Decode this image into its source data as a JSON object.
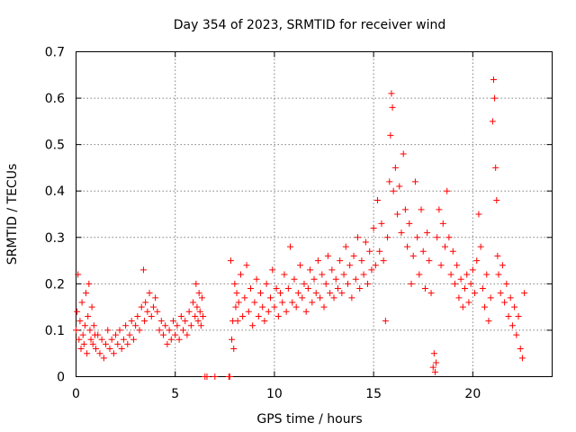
{
  "chart_data": {
    "type": "scatter",
    "title": "Day 354 of 2023, SRMTID for receiver wind",
    "xlabel": "GPS time / hours",
    "ylabel": "SRMTID / TECUs",
    "xlim": [
      0,
      24
    ],
    "ylim": [
      0,
      0.7
    ],
    "xticks": [
      0,
      5,
      10,
      15,
      20
    ],
    "yticks": [
      0,
      0.1,
      0.2,
      0.3,
      0.4,
      0.5,
      0.6,
      0.7
    ],
    "xtick_labels": [
      "0",
      "5",
      "10",
      "15",
      "20"
    ],
    "ytick_labels": [
      "0",
      "0.1",
      "0.2",
      "0.3",
      "0.4",
      "0.5",
      "0.6",
      "0.7"
    ],
    "grid": true,
    "marker": "+",
    "series": [
      {
        "name": "SRMTID",
        "color": "#ff0000",
        "points": [
          [
            0.0,
            0.1
          ],
          [
            0.05,
            0.14
          ],
          [
            0.1,
            0.22
          ],
          [
            0.15,
            0.08
          ],
          [
            0.2,
            0.12
          ],
          [
            0.25,
            0.06
          ],
          [
            0.3,
            0.16
          ],
          [
            0.35,
            0.09
          ],
          [
            0.4,
            0.07
          ],
          [
            0.45,
            0.11
          ],
          [
            0.5,
            0.18
          ],
          [
            0.55,
            0.05
          ],
          [
            0.6,
            0.13
          ],
          [
            0.65,
            0.2
          ],
          [
            0.7,
            0.1
          ],
          [
            0.75,
            0.08
          ],
          [
            0.8,
            0.15
          ],
          [
            0.85,
            0.07
          ],
          [
            0.9,
            0.11
          ],
          [
            0.95,
            0.09
          ],
          [
            1.0,
            0.06
          ],
          [
            1.1,
            0.09
          ],
          [
            1.2,
            0.05
          ],
          [
            1.3,
            0.08
          ],
          [
            1.4,
            0.04
          ],
          [
            1.5,
            0.07
          ],
          [
            1.6,
            0.1
          ],
          [
            1.7,
            0.06
          ],
          [
            1.8,
            0.08
          ],
          [
            1.9,
            0.05
          ],
          [
            2.0,
            0.09
          ],
          [
            2.1,
            0.07
          ],
          [
            2.2,
            0.1
          ],
          [
            2.3,
            0.06
          ],
          [
            2.4,
            0.08
          ],
          [
            2.5,
            0.11
          ],
          [
            2.6,
            0.07
          ],
          [
            2.7,
            0.09
          ],
          [
            2.8,
            0.12
          ],
          [
            2.9,
            0.08
          ],
          [
            3.0,
            0.11
          ],
          [
            3.1,
            0.13
          ],
          [
            3.2,
            0.1
          ],
          [
            3.3,
            0.15
          ],
          [
            3.4,
            0.23
          ],
          [
            3.45,
            0.12
          ],
          [
            3.5,
            0.16
          ],
          [
            3.6,
            0.14
          ],
          [
            3.7,
            0.18
          ],
          [
            3.8,
            0.13
          ],
          [
            3.9,
            0.15
          ],
          [
            4.0,
            0.17
          ],
          [
            4.1,
            0.14
          ],
          [
            4.2,
            0.1
          ],
          [
            4.3,
            0.12
          ],
          [
            4.4,
            0.09
          ],
          [
            4.5,
            0.11
          ],
          [
            4.6,
            0.07
          ],
          [
            4.7,
            0.1
          ],
          [
            4.8,
            0.08
          ],
          [
            4.9,
            0.12
          ],
          [
            5.0,
            0.09
          ],
          [
            5.1,
            0.11
          ],
          [
            5.2,
            0.08
          ],
          [
            5.3,
            0.13
          ],
          [
            5.4,
            0.1
          ],
          [
            5.5,
            0.12
          ],
          [
            5.6,
            0.09
          ],
          [
            5.7,
            0.14
          ],
          [
            5.8,
            0.11
          ],
          [
            5.9,
            0.16
          ],
          [
            6.0,
            0.13
          ],
          [
            6.05,
            0.2
          ],
          [
            6.1,
            0.15
          ],
          [
            6.15,
            0.12
          ],
          [
            6.2,
            0.18
          ],
          [
            6.25,
            0.14
          ],
          [
            6.3,
            0.11
          ],
          [
            6.35,
            0.17
          ],
          [
            6.4,
            0.13
          ],
          [
            6.5,
            0.0
          ],
          [
            6.6,
            0.0
          ],
          [
            7.0,
            0.0
          ],
          [
            7.7,
            0.0
          ],
          [
            7.75,
            0.0
          ],
          [
            7.8,
            0.25
          ],
          [
            7.85,
            0.08
          ],
          [
            7.9,
            0.12
          ],
          [
            7.95,
            0.06
          ],
          [
            8.0,
            0.2
          ],
          [
            8.05,
            0.15
          ],
          [
            8.1,
            0.18
          ],
          [
            8.15,
            0.12
          ],
          [
            8.2,
            0.16
          ],
          [
            8.3,
            0.22
          ],
          [
            8.4,
            0.13
          ],
          [
            8.5,
            0.17
          ],
          [
            8.6,
            0.24
          ],
          [
            8.7,
            0.14
          ],
          [
            8.8,
            0.19
          ],
          [
            8.9,
            0.11
          ],
          [
            9.0,
            0.16
          ],
          [
            9.1,
            0.21
          ],
          [
            9.2,
            0.13
          ],
          [
            9.3,
            0.18
          ],
          [
            9.4,
            0.15
          ],
          [
            9.5,
            0.12
          ],
          [
            9.6,
            0.2
          ],
          [
            9.7,
            0.14
          ],
          [
            9.8,
            0.17
          ],
          [
            9.9,
            0.23
          ],
          [
            10.0,
            0.15
          ],
          [
            10.1,
            0.19
          ],
          [
            10.2,
            0.13
          ],
          [
            10.3,
            0.18
          ],
          [
            10.4,
            0.16
          ],
          [
            10.5,
            0.22
          ],
          [
            10.6,
            0.14
          ],
          [
            10.7,
            0.19
          ],
          [
            10.8,
            0.28
          ],
          [
            10.9,
            0.16
          ],
          [
            11.0,
            0.21
          ],
          [
            11.1,
            0.15
          ],
          [
            11.2,
            0.18
          ],
          [
            11.3,
            0.24
          ],
          [
            11.4,
            0.17
          ],
          [
            11.5,
            0.2
          ],
          [
            11.6,
            0.14
          ],
          [
            11.7,
            0.19
          ],
          [
            11.8,
            0.23
          ],
          [
            11.9,
            0.16
          ],
          [
            12.0,
            0.21
          ],
          [
            12.1,
            0.18
          ],
          [
            12.2,
            0.25
          ],
          [
            12.3,
            0.17
          ],
          [
            12.4,
            0.22
          ],
          [
            12.5,
            0.15
          ],
          [
            12.6,
            0.2
          ],
          [
            12.7,
            0.26
          ],
          [
            12.8,
            0.18
          ],
          [
            12.9,
            0.23
          ],
          [
            13.0,
            0.17
          ],
          [
            13.1,
            0.21
          ],
          [
            13.2,
            0.19
          ],
          [
            13.3,
            0.25
          ],
          [
            13.4,
            0.18
          ],
          [
            13.5,
            0.22
          ],
          [
            13.6,
            0.28
          ],
          [
            13.7,
            0.2
          ],
          [
            13.8,
            0.24
          ],
          [
            13.9,
            0.17
          ],
          [
            14.0,
            0.26
          ],
          [
            14.1,
            0.21
          ],
          [
            14.2,
            0.3
          ],
          [
            14.3,
            0.19
          ],
          [
            14.4,
            0.25
          ],
          [
            14.5,
            0.22
          ],
          [
            14.6,
            0.29
          ],
          [
            14.7,
            0.2
          ],
          [
            14.8,
            0.27
          ],
          [
            14.9,
            0.23
          ],
          [
            15.0,
            0.32
          ],
          [
            15.1,
            0.24
          ],
          [
            15.2,
            0.38
          ],
          [
            15.3,
            0.27
          ],
          [
            15.4,
            0.33
          ],
          [
            15.5,
            0.25
          ],
          [
            15.6,
            0.12
          ],
          [
            15.7,
            0.3
          ],
          [
            15.8,
            0.42
          ],
          [
            15.85,
            0.52
          ],
          [
            15.9,
            0.61
          ],
          [
            15.95,
            0.58
          ],
          [
            16.0,
            0.4
          ],
          [
            16.1,
            0.45
          ],
          [
            16.2,
            0.35
          ],
          [
            16.3,
            0.41
          ],
          [
            16.4,
            0.31
          ],
          [
            16.5,
            0.48
          ],
          [
            16.6,
            0.36
          ],
          [
            16.7,
            0.28
          ],
          [
            16.8,
            0.33
          ],
          [
            16.9,
            0.2
          ],
          [
            17.0,
            0.26
          ],
          [
            17.1,
            0.42
          ],
          [
            17.2,
            0.3
          ],
          [
            17.3,
            0.22
          ],
          [
            17.4,
            0.36
          ],
          [
            17.5,
            0.27
          ],
          [
            17.6,
            0.19
          ],
          [
            17.7,
            0.31
          ],
          [
            17.8,
            0.25
          ],
          [
            17.9,
            0.18
          ],
          [
            18.0,
            0.02
          ],
          [
            18.05,
            0.05
          ],
          [
            18.1,
            0.01
          ],
          [
            18.15,
            0.03
          ],
          [
            18.2,
            0.3
          ],
          [
            18.3,
            0.36
          ],
          [
            18.4,
            0.24
          ],
          [
            18.5,
            0.33
          ],
          [
            18.6,
            0.28
          ],
          [
            18.7,
            0.4
          ],
          [
            18.8,
            0.3
          ],
          [
            18.9,
            0.22
          ],
          [
            19.0,
            0.27
          ],
          [
            19.1,
            0.2
          ],
          [
            19.2,
            0.24
          ],
          [
            19.3,
            0.17
          ],
          [
            19.4,
            0.21
          ],
          [
            19.5,
            0.15
          ],
          [
            19.6,
            0.19
          ],
          [
            19.7,
            0.22
          ],
          [
            19.8,
            0.16
          ],
          [
            19.9,
            0.2
          ],
          [
            20.0,
            0.23
          ],
          [
            20.1,
            0.18
          ],
          [
            20.2,
            0.25
          ],
          [
            20.3,
            0.35
          ],
          [
            20.4,
            0.28
          ],
          [
            20.5,
            0.19
          ],
          [
            20.6,
            0.15
          ],
          [
            20.7,
            0.22
          ],
          [
            20.8,
            0.12
          ],
          [
            20.9,
            0.17
          ],
          [
            21.0,
            0.55
          ],
          [
            21.05,
            0.64
          ],
          [
            21.1,
            0.6
          ],
          [
            21.15,
            0.45
          ],
          [
            21.2,
            0.38
          ],
          [
            21.25,
            0.26
          ],
          [
            21.3,
            0.22
          ],
          [
            21.4,
            0.18
          ],
          [
            21.5,
            0.24
          ],
          [
            21.6,
            0.16
          ],
          [
            21.7,
            0.2
          ],
          [
            21.8,
            0.13
          ],
          [
            21.9,
            0.17
          ],
          [
            22.0,
            0.11
          ],
          [
            22.1,
            0.15
          ],
          [
            22.2,
            0.09
          ],
          [
            22.3,
            0.13
          ],
          [
            22.4,
            0.06
          ],
          [
            22.5,
            0.04
          ],
          [
            22.6,
            0.18
          ]
        ]
      }
    ]
  }
}
